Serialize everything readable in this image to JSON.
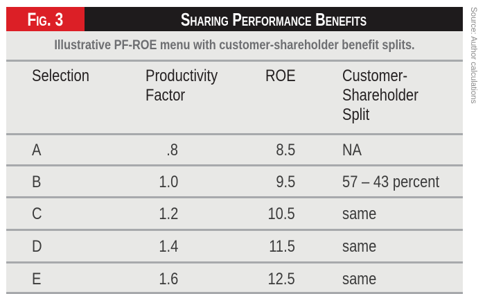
{
  "figure": {
    "label": "Fig. 3",
    "title": "Sharing Performance Benefits",
    "subtitle": "Illustrative PF-ROE menu with customer-shareholder benefit splits.",
    "source": "Source: Author calculations",
    "colors": {
      "label_bg": "#dc1f26",
      "title_bg": "#1e1b1c",
      "panel_bg": "#e8e8e6",
      "subtitle_text": "#6d6e71",
      "rule": "#a7a9ac"
    }
  },
  "table": {
    "headers": [
      [
        "Selection"
      ],
      [
        "Productivity",
        "Factor"
      ],
      [
        "ROE"
      ],
      [
        "Customer-",
        "Shareholder",
        "Split"
      ]
    ],
    "rows": [
      {
        "selection": "A",
        "pf": ".8",
        "roe": "8.5",
        "split": "NA"
      },
      {
        "selection": "B",
        "pf": "1.0",
        "roe": "9.5",
        "split": "57 – 43 percent"
      },
      {
        "selection": "C",
        "pf": "1.2",
        "roe": "10.5",
        "split": "same"
      },
      {
        "selection": "D",
        "pf": "1.4",
        "roe": "11.5",
        "split": "same"
      },
      {
        "selection": "E",
        "pf": "1.6",
        "roe": "12.5",
        "split": "same"
      }
    ]
  }
}
